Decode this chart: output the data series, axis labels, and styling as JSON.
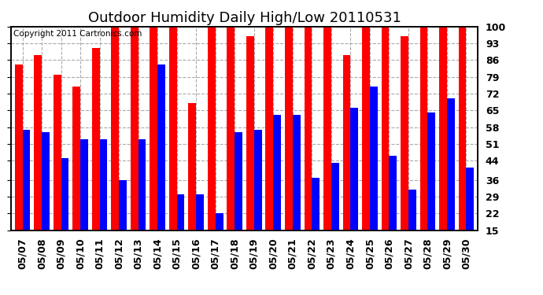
{
  "title": "Outdoor Humidity Daily High/Low 20110531",
  "copyright_text": "Copyright 2011 Cartronics.com",
  "dates": [
    "05/07",
    "05/08",
    "05/09",
    "05/10",
    "05/11",
    "05/12",
    "05/13",
    "05/14",
    "05/15",
    "05/16",
    "05/17",
    "05/18",
    "05/19",
    "05/20",
    "05/21",
    "05/22",
    "05/23",
    "05/24",
    "05/25",
    "05/26",
    "05/27",
    "05/28",
    "05/29",
    "05/30"
  ],
  "highs": [
    84,
    88,
    80,
    75,
    91,
    100,
    100,
    100,
    100,
    68,
    100,
    100,
    96,
    100,
    100,
    100,
    100,
    88,
    100,
    100,
    96,
    100,
    100,
    100
  ],
  "lows": [
    57,
    56,
    45,
    53,
    53,
    36,
    53,
    84,
    30,
    30,
    22,
    56,
    57,
    63,
    63,
    37,
    43,
    66,
    75,
    46,
    32,
    64,
    70,
    41
  ],
  "high_color": "#ff0000",
  "low_color": "#0000ff",
  "bg_color": "#ffffff",
  "grid_color": "#aaaaaa",
  "ylim_min": 15,
  "ylim_max": 100,
  "yticks": [
    15,
    22,
    29,
    36,
    44,
    51,
    58,
    65,
    72,
    79,
    86,
    93,
    100
  ],
  "bar_width": 0.4,
  "title_fontsize": 13,
  "tick_fontsize": 9,
  "copyright_fontsize": 7.5
}
